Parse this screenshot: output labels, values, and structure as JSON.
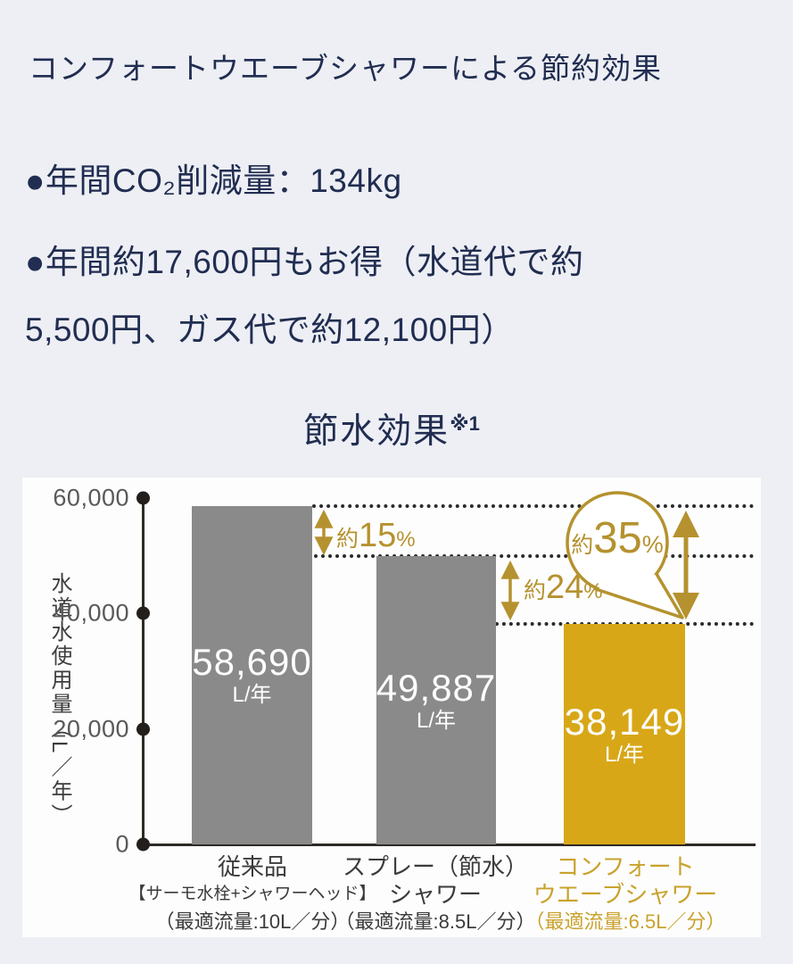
{
  "header": {
    "title": "コンフォートウエーブシャワーによる節約効果"
  },
  "highlights": {
    "co2": "●年間CO₂削減量：134kg",
    "savings_line1": "●年間約17,600円もお得（水道代で約",
    "savings_line2": "5,500円、ガス代で約12,100円）"
  },
  "chart": {
    "title": "節水効果",
    "title_note": "※1",
    "y_axis_label": "水道水使用量（L／年）",
    "ytick_labels": [
      "60,000",
      "40,000",
      "20,000",
      "0"
    ],
    "bars": [
      {
        "value_label": "58,690",
        "unit": "L/年"
      },
      {
        "value_label": "49,887",
        "unit": "L/年"
      },
      {
        "value_label": "38,149",
        "unit": "L/年"
      }
    ],
    "annotations": [
      {
        "prefix": "約",
        "value": "15",
        "suffix": "%"
      },
      {
        "prefix": "約",
        "value": "24",
        "suffix": "%"
      },
      {
        "prefix": "約",
        "value": "35",
        "suffix": "%"
      }
    ],
    "x_labels": [
      {
        "line1": "従来品",
        "line2": "【サーモ水栓+シャワーヘッド】",
        "flow": "（最適流量:10L／分）"
      },
      {
        "line1": "スプレー（節水）",
        "line2": "シャワー",
        "flow": "（最適流量:8.5L／分）"
      },
      {
        "line1": "コンフォート",
        "line2": "ウエーブシャワー",
        "flow": "（最適流量:6.5L／分）"
      }
    ]
  },
  "chart_data": {
    "type": "bar",
    "title": "節水効果※1",
    "ylabel": "水道水使用量（L／年）",
    "ylim": [
      0,
      60000
    ],
    "yticks": [
      60000,
      40000,
      20000,
      0
    ],
    "categories": [
      "従来品【サーモ水栓+シャワーヘッド】（最適流量:10L／分）",
      "スプレー（節水）シャワー（最適流量:8.5L／分）",
      "コンフォートウエーブシャワー（最適流量:6.5L／分）"
    ],
    "values": [
      58690,
      49887,
      38149
    ],
    "value_labels": [
      "58,690",
      "49,887",
      "38,149"
    ],
    "unit": "L/年",
    "bar_colors": [
      "#8a8a8a",
      "#8a8a8a",
      "#d8a718"
    ],
    "grid": false,
    "annotations": [
      {
        "text": "約15%",
        "from_bar": 0,
        "to_bar": 1
      },
      {
        "text": "約24%",
        "from_bar": 1,
        "to_bar": 2
      },
      {
        "text": "約35%",
        "from_bar": 0,
        "to_bar": 2,
        "style": "speech-bubble"
      }
    ]
  },
  "colors": {
    "navy_text": "#212d51",
    "page_background": "#edeff4",
    "gray_bar": "#8a8a8a",
    "gold_bar": "#d8a718",
    "gold_annotation": "#b5922f",
    "gold_label": "#c9a22c"
  }
}
